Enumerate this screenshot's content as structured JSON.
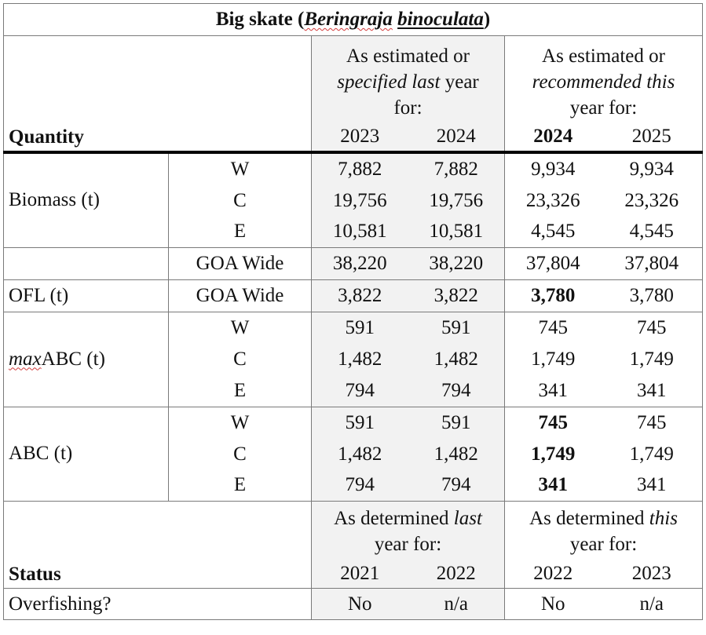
{
  "title": {
    "prefix": "Big skate (",
    "genus": "Beringraja",
    "species": "binoculata",
    "suffix": ")"
  },
  "header": {
    "quantity_label": "Quantity",
    "last_year_line1": "As estimated or",
    "last_year_italic": "specified last",
    "last_year_tail": " year",
    "last_year_line3": "for:",
    "this_year_line1": "As estimated or",
    "this_year_italic": "recommended this",
    "this_year_line3": "year for:",
    "years": [
      "2023",
      "2024",
      "2024",
      "2025"
    ]
  },
  "sections": {
    "biomass": {
      "label": "Biomass (t)",
      "rows": [
        {
          "area": "W",
          "values": [
            "7,882",
            "7,882",
            "9,934",
            "9,934"
          ]
        },
        {
          "area": "C",
          "values": [
            "19,756",
            "19,756",
            "23,326",
            "23,326"
          ]
        },
        {
          "area": "E",
          "values": [
            "10,581",
            "10,581",
            "4,545",
            "4,545"
          ]
        },
        {
          "area": "GOA Wide",
          "values": [
            "38,220",
            "38,220",
            "37,804",
            "37,804"
          ]
        }
      ]
    },
    "ofl": {
      "label": "OFL (t)",
      "rows": [
        {
          "area": "GOA Wide",
          "values": [
            "3,822",
            "3,822",
            "3,780",
            "3,780"
          ]
        }
      ]
    },
    "maxabc": {
      "label_italic": "max",
      "label_rest": "ABC (t)",
      "rows": [
        {
          "area": "W",
          "values": [
            "591",
            "591",
            "745",
            "745"
          ]
        },
        {
          "area": "C",
          "values": [
            "1,482",
            "1,482",
            "1,749",
            "1,749"
          ]
        },
        {
          "area": "E",
          "values": [
            "794",
            "794",
            "341",
            "341"
          ]
        }
      ]
    },
    "abc": {
      "label": "ABC (t)",
      "rows": [
        {
          "area": "W",
          "values": [
            "591",
            "591",
            "745",
            "745"
          ]
        },
        {
          "area": "C",
          "values": [
            "1,482",
            "1,482",
            "1,749",
            "1,749"
          ]
        },
        {
          "area": "E",
          "values": [
            "794",
            "794",
            "341",
            "341"
          ]
        }
      ]
    }
  },
  "status": {
    "label": "Status",
    "last_year_text": "As determined ",
    "last_year_italic": "last",
    "last_year_line2": "year for:",
    "this_year_text": "As determined ",
    "this_year_italic": "this",
    "this_year_line2": "year for:",
    "years": [
      "2021",
      "2022",
      "2022",
      "2023"
    ],
    "overfishing_label": "Overfishing?",
    "overfishing_values": [
      "No",
      "n/a",
      "No",
      "n/a"
    ]
  }
}
